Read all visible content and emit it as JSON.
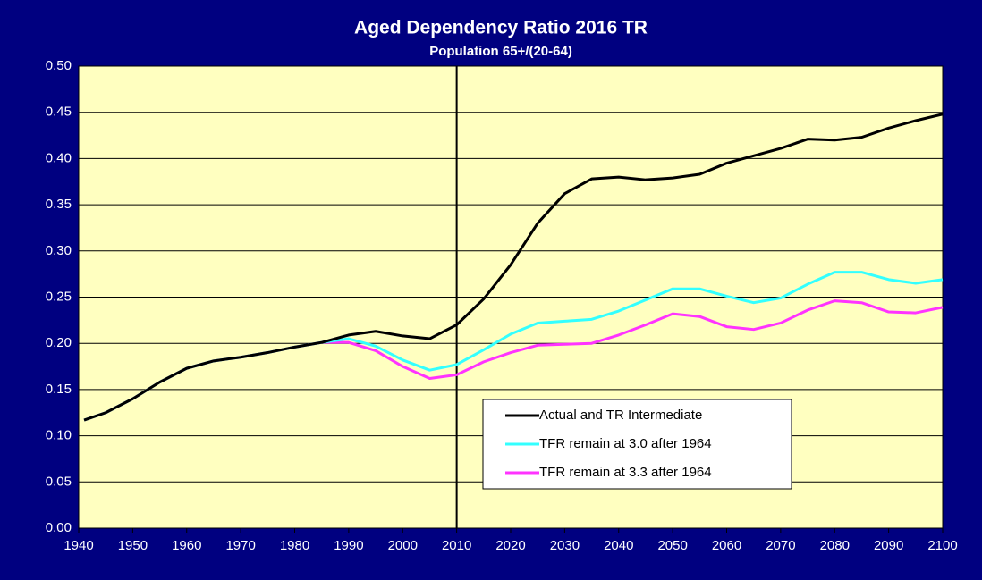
{
  "chart_data": {
    "type": "line",
    "title": "Aged Dependency Ratio 2016 TR",
    "subtitle": "Population 65+/(20-64)",
    "x": [
      1941,
      1945,
      1950,
      1955,
      1960,
      1965,
      1970,
      1975,
      1980,
      1985,
      1990,
      1995,
      2000,
      2005,
      2010,
      2015,
      2020,
      2025,
      2030,
      2035,
      2040,
      2045,
      2050,
      2055,
      2060,
      2065,
      2070,
      2075,
      2080,
      2085,
      2090,
      2095,
      2100
    ],
    "series": [
      {
        "name": "Actual and TR Intermediate",
        "color": "#000000",
        "values": [
          0.117,
          0.125,
          0.14,
          0.158,
          0.173,
          0.181,
          0.185,
          0.19,
          0.196,
          0.201,
          0.209,
          0.213,
          0.208,
          0.205,
          0.22,
          0.248,
          0.285,
          0.33,
          0.362,
          0.378,
          0.38,
          0.377,
          0.379,
          0.383,
          0.395,
          0.403,
          0.411,
          0.421,
          0.42,
          0.423,
          0.433,
          0.441,
          0.448
        ]
      },
      {
        "name": "TFR remain at 3.0 after 1964",
        "color": "#33ffff",
        "values": [
          0.117,
          0.125,
          0.14,
          0.158,
          0.173,
          0.181,
          0.185,
          0.19,
          0.196,
          0.201,
          0.205,
          0.197,
          0.182,
          0.171,
          0.177,
          0.193,
          0.21,
          0.222,
          0.224,
          0.226,
          0.235,
          0.247,
          0.259,
          0.259,
          0.251,
          0.244,
          0.249,
          0.264,
          0.277,
          0.277,
          0.269,
          0.265,
          0.269
        ]
      },
      {
        "name": "TFR remain at 3.3 after 1964",
        "color": "#ff33ff",
        "values": [
          0.117,
          0.125,
          0.14,
          0.158,
          0.173,
          0.181,
          0.185,
          0.19,
          0.196,
          0.201,
          0.201,
          0.192,
          0.175,
          0.162,
          0.166,
          0.18,
          0.19,
          0.198,
          0.199,
          0.2,
          0.209,
          0.22,
          0.232,
          0.229,
          0.218,
          0.215,
          0.222,
          0.236,
          0.246,
          0.244,
          0.234,
          0.233,
          0.239
        ]
      }
    ],
    "vline": 2010,
    "xlim": [
      1940,
      2100
    ],
    "xticks": [
      1940,
      1950,
      1960,
      1970,
      1980,
      1990,
      2000,
      2010,
      2020,
      2030,
      2040,
      2050,
      2060,
      2070,
      2080,
      2090,
      2100
    ],
    "ylim": [
      0,
      0.5
    ],
    "yticks": [
      {
        "value": 0,
        "label": "0.00"
      },
      {
        "value": 0.05,
        "label": "0.05"
      },
      {
        "value": 0.1,
        "label": "0.10"
      },
      {
        "value": 0.15,
        "label": "0.15"
      },
      {
        "value": 0.2,
        "label": "0.20"
      },
      {
        "value": 0.25,
        "label": "0.25"
      },
      {
        "value": 0.3,
        "label": "0.30"
      },
      {
        "value": 0.35,
        "label": "0.35"
      },
      {
        "value": 0.4,
        "label": "0.40"
      },
      {
        "value": 0.45,
        "label": "0.45"
      },
      {
        "value": 0.5,
        "label": "0.50"
      }
    ],
    "grid": true,
    "plot_color": "#ffffc0",
    "background": "#000080"
  }
}
